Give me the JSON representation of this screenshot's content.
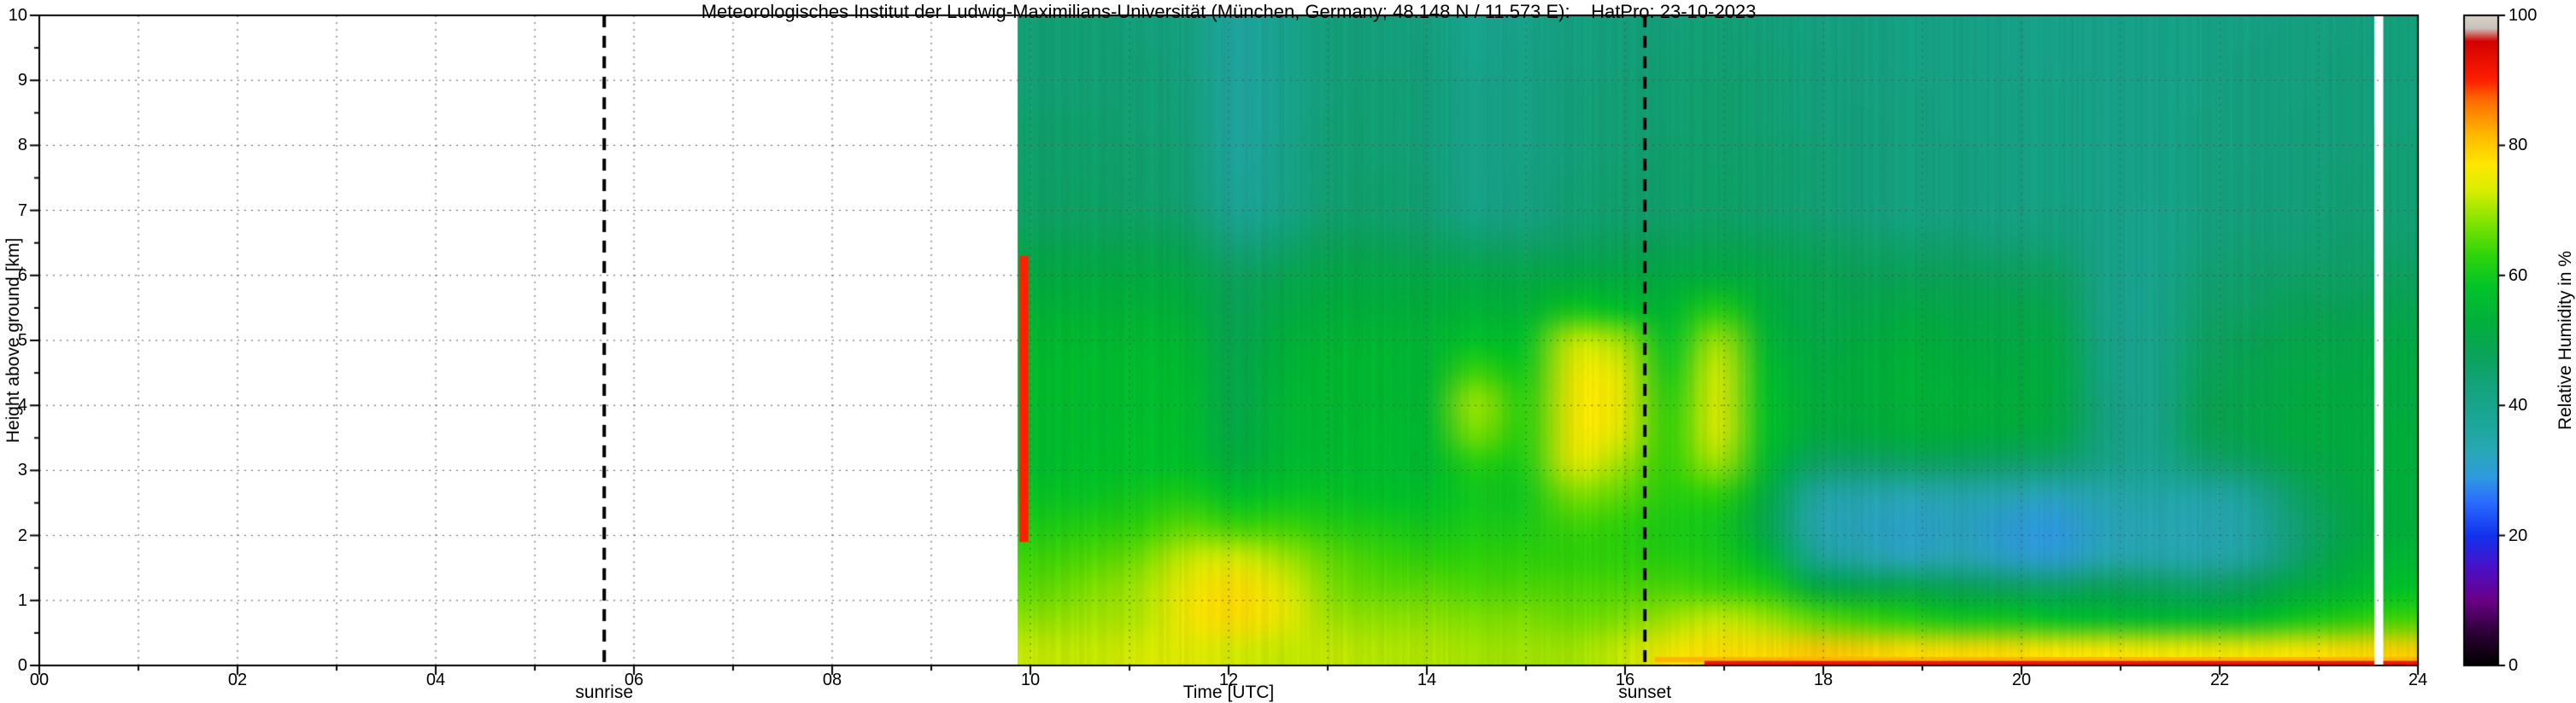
{
  "title": "Meteorologisches Institut der Ludwig-Maximilians-Universität (München, Germany; 48.148 N / 11.573 E):    HatPro: 23-10-2023",
  "axes": {
    "x_label": "Time [UTC]",
    "y_label": "Height above ground [km]",
    "x_ticks": [
      "00",
      "02",
      "04",
      "06",
      "08",
      "10",
      "12",
      "14",
      "16",
      "18",
      "20",
      "22",
      "24"
    ],
    "x_tick_values": [
      0,
      2,
      4,
      6,
      8,
      10,
      12,
      14,
      16,
      18,
      20,
      22,
      24
    ],
    "y_ticks": [
      "0",
      "1",
      "2",
      "3",
      "4",
      "5",
      "6",
      "7",
      "8",
      "9",
      "10"
    ],
    "y_tick_values": [
      0,
      1,
      2,
      3,
      4,
      5,
      6,
      7,
      8,
      9,
      10
    ],
    "x_range": [
      0,
      24
    ],
    "y_range": [
      0,
      10
    ]
  },
  "annotations": {
    "sunrise": {
      "label": "sunrise",
      "time_utc": 5.7
    },
    "sunset": {
      "label": "sunset",
      "time_utc": 16.2
    }
  },
  "colorbar": {
    "label": "Relative Humidity in %",
    "ticks": [
      "0",
      "20",
      "40",
      "60",
      "80",
      "100"
    ],
    "tick_values": [
      0,
      20,
      40,
      60,
      80,
      100
    ],
    "range": [
      0,
      100
    ]
  },
  "chart_data": {
    "type": "heatmap",
    "x_unit": "hour UTC",
    "y_unit": "km above ground",
    "value_unit": "relative humidity %",
    "data_start_time": 9.87,
    "colormap_stops": [
      [
        0,
        "#000000"
      ],
      [
        5,
        "#2d0036"
      ],
      [
        10,
        "#6b0087"
      ],
      [
        15,
        "#4b10c8"
      ],
      [
        20,
        "#1233ee"
      ],
      [
        25,
        "#2a6bff"
      ],
      [
        29,
        "#2f9be0"
      ],
      [
        33,
        "#28a8b4"
      ],
      [
        38,
        "#1aa796"
      ],
      [
        43,
        "#14a37d"
      ],
      [
        48,
        "#0aa458"
      ],
      [
        53,
        "#00b13c"
      ],
      [
        58,
        "#00c42a"
      ],
      [
        63,
        "#2ed40a"
      ],
      [
        68,
        "#7fe300"
      ],
      [
        73,
        "#d8ee00"
      ],
      [
        77,
        "#ffe800"
      ],
      [
        82,
        "#ffb400"
      ],
      [
        87,
        "#ff6a00"
      ],
      [
        90,
        "#ff2000"
      ],
      [
        96,
        "#d40000"
      ],
      [
        98,
        "#c9c2b8"
      ],
      [
        100,
        "#d9d2c7"
      ]
    ],
    "grid": {
      "times": [
        10,
        10.5,
        11,
        11.5,
        12,
        12.5,
        13,
        13.5,
        14,
        14.5,
        15,
        15.5,
        16,
        16.5,
        17,
        17.5,
        18,
        18.5,
        19,
        19.5,
        20,
        20.5,
        21,
        21.5,
        22,
        22.5,
        23,
        23.5,
        24
      ],
      "heights": [
        0,
        0.5,
        1,
        1.5,
        2,
        2.5,
        3,
        3.5,
        4,
        4.5,
        5,
        5.5,
        6,
        6.5,
        7,
        7.5,
        8,
        8.5,
        9,
        9.5,
        10
      ],
      "values": [
        [
          72,
          69,
          66,
          64,
          61,
          59,
          57,
          57,
          57,
          57,
          56,
          54,
          52,
          49,
          46,
          46,
          45,
          45,
          44,
          44,
          44
        ],
        [
          72,
          70,
          68,
          65,
          62,
          59,
          58,
          57,
          57,
          57,
          56,
          54,
          52,
          49,
          46,
          46,
          45,
          45,
          44,
          44,
          44
        ],
        [
          73,
          71,
          70,
          67,
          63,
          60,
          58,
          58,
          57,
          57,
          56,
          54,
          52,
          49,
          46,
          45,
          45,
          44,
          44,
          44,
          43
        ],
        [
          74,
          76,
          75,
          72,
          66,
          61,
          58,
          57,
          57,
          56,
          55,
          53,
          51,
          48,
          45,
          44,
          44,
          43,
          43,
          42,
          42
        ],
        [
          73,
          78,
          78,
          73,
          64,
          58,
          53,
          51,
          50,
          50,
          49,
          48,
          47,
          43,
          38,
          37,
          36,
          36,
          36,
          36,
          36
        ],
        [
          72,
          75,
          74,
          70,
          64,
          59,
          56,
          55,
          55,
          54,
          53,
          51,
          49,
          45,
          41,
          40,
          40,
          39,
          39,
          39,
          39
        ],
        [
          72,
          70,
          68,
          66,
          62,
          59,
          57,
          56,
          56,
          56,
          55,
          53,
          51,
          48,
          45,
          44,
          44,
          44,
          43,
          43,
          43
        ],
        [
          71,
          69,
          66,
          64,
          61,
          58,
          57,
          57,
          56,
          56,
          55,
          53,
          51,
          48,
          45,
          45,
          44,
          44,
          44,
          43,
          43
        ],
        [
          71,
          69,
          66,
          63,
          60,
          58,
          56,
          56,
          56,
          55,
          55,
          53,
          51,
          47,
          44,
          44,
          43,
          43,
          43,
          43,
          42
        ],
        [
          70,
          68,
          65,
          63,
          61,
          60,
          62,
          68,
          70,
          64,
          58,
          54,
          51,
          46,
          41,
          40,
          40,
          40,
          40,
          39,
          39
        ],
        [
          70,
          68,
          65,
          63,
          61,
          60,
          61,
          62,
          62,
          60,
          58,
          54,
          51,
          46,
          42,
          42,
          41,
          41,
          41,
          41,
          40
        ],
        [
          70,
          67,
          65,
          63,
          64,
          68,
          74,
          76,
          76,
          75,
          72,
          60,
          52,
          47,
          44,
          44,
          43,
          43,
          43,
          42,
          42
        ],
        [
          72,
          68,
          65,
          63,
          63,
          66,
          70,
          74,
          75,
          74,
          70,
          58,
          52,
          48,
          45,
          45,
          44,
          44,
          44,
          43,
          43
        ],
        [
          76,
          70,
          65,
          62,
          61,
          62,
          63,
          63,
          62,
          60,
          58,
          55,
          52,
          48,
          45,
          45,
          45,
          44,
          44,
          44,
          43
        ],
        [
          78,
          72,
          64,
          61,
          60,
          63,
          70,
          74,
          74,
          73,
          70,
          62,
          53,
          49,
          46,
          46,
          45,
          45,
          45,
          44,
          44
        ],
        [
          78,
          70,
          62,
          55,
          50,
          52,
          56,
          58,
          58,
          57,
          55,
          53,
          51,
          48,
          45,
          45,
          45,
          44,
          44,
          44,
          43
        ],
        [
          80,
          66,
          52,
          38,
          34,
          36,
          46,
          52,
          53,
          52,
          51,
          50,
          49,
          47,
          44,
          44,
          44,
          43,
          43,
          43,
          42
        ],
        [
          79,
          64,
          50,
          34,
          32,
          34,
          45,
          52,
          53,
          53,
          52,
          50,
          48,
          46,
          43,
          43,
          43,
          43,
          42,
          42,
          42
        ],
        [
          78,
          62,
          50,
          32,
          31,
          33,
          46,
          53,
          54,
          54,
          53,
          51,
          48,
          45,
          42,
          42,
          42,
          42,
          42,
          41,
          41
        ],
        [
          78,
          60,
          48,
          33,
          32,
          34,
          46,
          53,
          54,
          53,
          52,
          50,
          48,
          45,
          42,
          42,
          42,
          41,
          41,
          41,
          41
        ],
        [
          78,
          60,
          47,
          31,
          30,
          33,
          45,
          52,
          53,
          52,
          51,
          50,
          47,
          44,
          41,
          41,
          41,
          41,
          41,
          40,
          40
        ],
        [
          77,
          58,
          46,
          30,
          29,
          32,
          44,
          51,
          52,
          52,
          51,
          49,
          47,
          44,
          42,
          41,
          41,
          41,
          41,
          40,
          40
        ],
        [
          77,
          57,
          48,
          33,
          32,
          34,
          40,
          42,
          42,
          41,
          41,
          40,
          40,
          40,
          40,
          40,
          40,
          40,
          40,
          40,
          40
        ],
        [
          76,
          56,
          47,
          34,
          33,
          35,
          38,
          39,
          39,
          39,
          39,
          39,
          39,
          39,
          39,
          40,
          40,
          40,
          40,
          40,
          40
        ],
        [
          76,
          56,
          46,
          34,
          33,
          35,
          44,
          48,
          48,
          47,
          46,
          45,
          44,
          43,
          42,
          42,
          42,
          42,
          41,
          41,
          41
        ],
        [
          76,
          57,
          48,
          36,
          35,
          37,
          46,
          50,
          50,
          49,
          48,
          46,
          45,
          44,
          43,
          43,
          42,
          42,
          42,
          42,
          41
        ],
        [
          77,
          60,
          52,
          45,
          44,
          46,
          50,
          52,
          52,
          51,
          50,
          48,
          46,
          44,
          43,
          43,
          43,
          43,
          42,
          42,
          42
        ],
        [
          78,
          62,
          55,
          52,
          50,
          51,
          52,
          52,
          52,
          51,
          50,
          48,
          46,
          45,
          44,
          44,
          43,
          43,
          43,
          43,
          42
        ],
        [
          79,
          64,
          58,
          55,
          53,
          53,
          53,
          53,
          52,
          52,
          51,
          49,
          47,
          45,
          44,
          44,
          44,
          43,
          43,
          43,
          43
        ]
      ]
    },
    "overlays": [
      {
        "name": "start-red-spike",
        "t0": 9.89,
        "t1": 9.98,
        "h0": 1.9,
        "h1": 6.3,
        "value": 90
      },
      {
        "name": "surface-moist-band",
        "t0": 16.3,
        "t1": 24,
        "h0": 0.05,
        "h1": 0.13,
        "value": 82
      },
      {
        "name": "surface-red-band",
        "t0": 16.8,
        "t1": 24,
        "h0": 0,
        "h1": 0.07,
        "value": 92
      },
      {
        "name": "missing-data-gap",
        "t0": 23.56,
        "t1": 23.65,
        "h0": 0,
        "h1": 10,
        "color": "#ffffff"
      }
    ]
  }
}
